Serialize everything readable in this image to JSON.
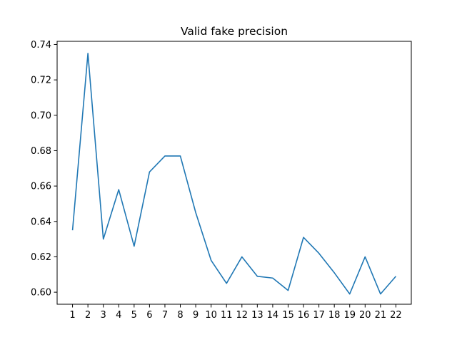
{
  "chart_data": {
    "type": "line",
    "title": "Valid fake precision",
    "xlabel": "",
    "ylabel": "",
    "x": [
      "1",
      "2",
      "3",
      "4",
      "5",
      "6",
      "7",
      "8",
      "9",
      "10",
      "11",
      "12",
      "13",
      "14",
      "15",
      "16",
      "17",
      "18",
      "19",
      "20",
      "21",
      "22"
    ],
    "series": [
      {
        "values": [
          0.635,
          0.735,
          0.63,
          0.658,
          0.626,
          0.668,
          0.677,
          0.677,
          0.645,
          0.618,
          0.605,
          0.62,
          0.609,
          0.608,
          0.601,
          0.631,
          0.622,
          0.611,
          0.599,
          0.62,
          0.599,
          0.609
        ],
        "color": "#1f77b4"
      }
    ],
    "xlim": [
      0,
      23
    ],
    "ylim": [
      0.5932,
      0.7418
    ],
    "yticks": [
      "0.60",
      "0.62",
      "0.64",
      "0.66",
      "0.68",
      "0.70",
      "0.72",
      "0.74"
    ],
    "grid": false,
    "legend": "none"
  }
}
